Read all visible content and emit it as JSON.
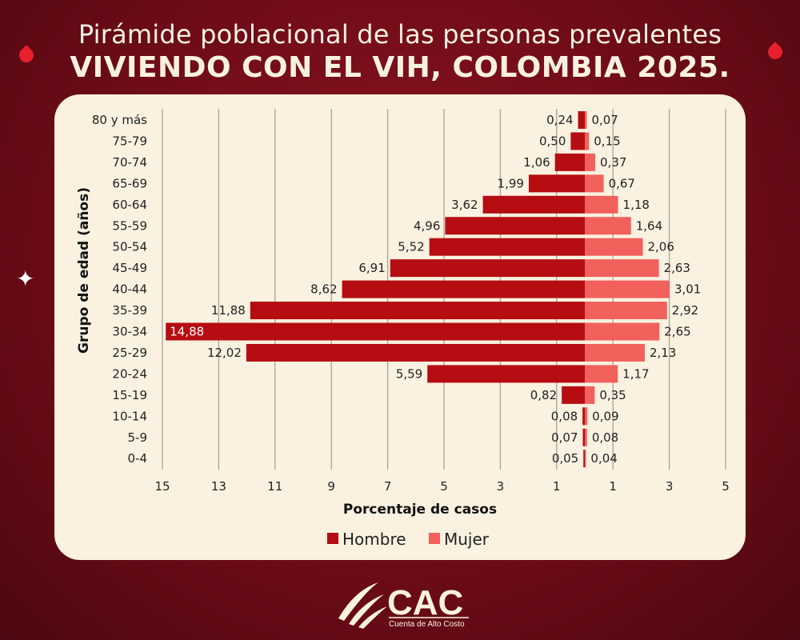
{
  "title_line1": "Pirámide poblacional de las personas prevalentes",
  "title_line2": "VIVIENDO CON EL VIH, COLOMBIA 2025.",
  "logo": {
    "text": "CAC",
    "subtitle": "Cuenta de Alto Costo"
  },
  "colors": {
    "hombre": "#b50d12",
    "mujer": "#f2605c",
    "background": "#7a0f1c",
    "card": "#fbf1e0"
  },
  "chart_data": {
    "type": "bar",
    "orientation": "horizontal-pyramid",
    "title": "Pirámide poblacional de las personas prevalentes VIVIENDO CON EL VIH, COLOMBIA 2025.",
    "xlabel": "Porcentaje de casos",
    "ylabel": "Grupo de edad (años)",
    "categories": [
      "80 y más",
      "75-79",
      "70-74",
      "65-69",
      "60-64",
      "55-59",
      "50-54",
      "45-49",
      "40-44",
      "35-39",
      "30-34",
      "25-29",
      "20-24",
      "15-19",
      "10-14",
      "5-9",
      "0-4"
    ],
    "series": [
      {
        "name": "Hombre",
        "side": "left",
        "values": [
          0.24,
          0.5,
          1.06,
          1.99,
          3.62,
          4.96,
          5.52,
          6.91,
          8.62,
          11.88,
          14.88,
          12.02,
          5.59,
          0.82,
          0.08,
          0.07,
          0.05
        ],
        "labels": [
          "0,24",
          "0,50",
          "1,06",
          "1,99",
          "3,62",
          "4,96",
          "5,52",
          "6,91",
          "8,62",
          "11,88",
          "14,88",
          "12,02",
          "5,59",
          "0,82",
          "0,08",
          "0,07",
          "0,05"
        ]
      },
      {
        "name": "Mujer",
        "side": "right",
        "values": [
          0.07,
          0.15,
          0.37,
          0.67,
          1.18,
          1.64,
          2.06,
          2.63,
          3.01,
          2.92,
          2.65,
          2.13,
          1.17,
          0.35,
          0.09,
          0.08,
          0.04
        ],
        "labels": [
          "0,07",
          "0,15",
          "0,37",
          "0,67",
          "1,18",
          "1,64",
          "2,06",
          "2,63",
          "3,01",
          "2,92",
          "2,65",
          "2,13",
          "1,17",
          "0,35",
          "0,09",
          "0,08",
          "0,04"
        ]
      }
    ],
    "x_ticks_left": [
      15,
      13,
      11,
      9,
      7,
      5,
      3,
      1
    ],
    "x_ticks_right": [
      1,
      3,
      5
    ],
    "xlim": [
      -15,
      5
    ],
    "grid": true,
    "legend": {
      "position": "bottom",
      "entries": [
        "Hombre",
        "Mujer"
      ]
    }
  }
}
